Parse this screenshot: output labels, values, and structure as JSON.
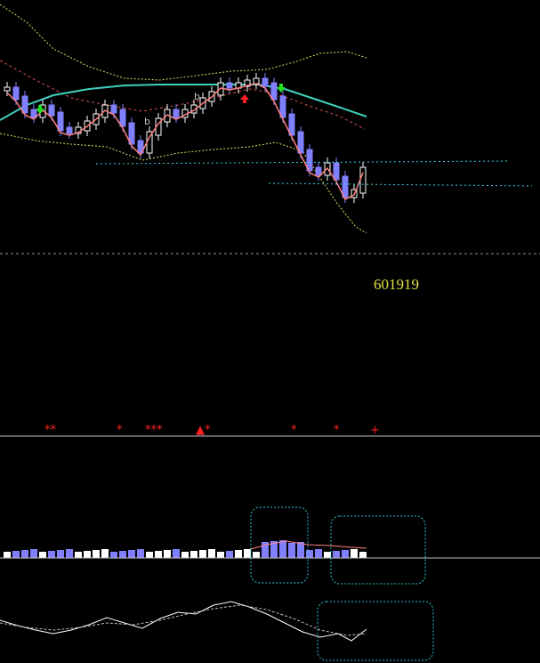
{
  "code": "601919",
  "buy_labels": [
    "b",
    "b"
  ],
  "signals": [
    "**",
    "*",
    "***",
    "▲*",
    "*",
    "*",
    "+"
  ]
}
